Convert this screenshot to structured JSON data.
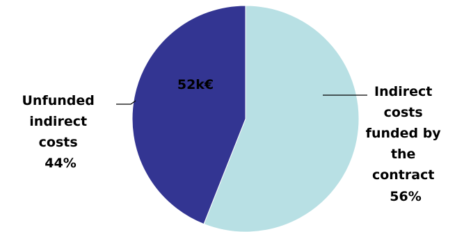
{
  "chart_data": {
    "type": "pie",
    "title": "",
    "center_annotation": "52k€",
    "slices": [
      {
        "label_lines": [
          "Indirect",
          "costs",
          "funded by",
          "the",
          "contract"
        ],
        "percent_label": "56%",
        "value": 56,
        "color": "#b8e0e4"
      },
      {
        "label_lines": [
          "Unfunded",
          "indirect",
          "costs"
        ],
        "percent_label": "44%",
        "value": 44,
        "color": "#333592"
      }
    ],
    "start_angle_deg": 0,
    "direction": "clockwise"
  }
}
